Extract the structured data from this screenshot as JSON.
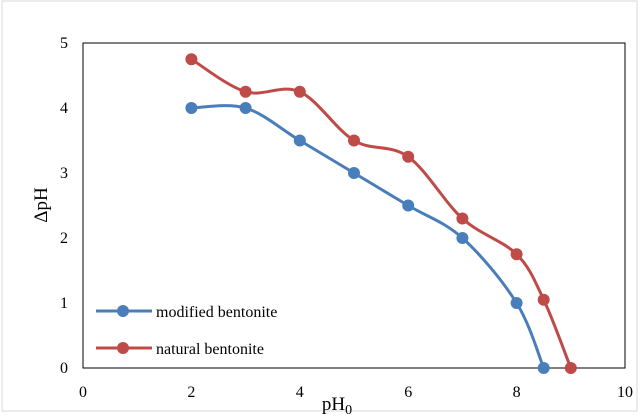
{
  "chart_data": {
    "type": "line",
    "xlabel": "pH",
    "xlabel_subscript": "0",
    "ylabel": "ΔpH",
    "xlim": [
      0,
      10
    ],
    "ylim": [
      0,
      5
    ],
    "x_ticks": [
      "0",
      "2",
      "4",
      "6",
      "8",
      "10"
    ],
    "y_ticks": [
      "0",
      "1",
      "2",
      "3",
      "4",
      "5"
    ],
    "grid": false,
    "legend_position": "bottom-left",
    "series": [
      {
        "name": "modified bentonite",
        "color": "#4a7ebb",
        "x": [
          2,
          3,
          4,
          5,
          6,
          7,
          8,
          8.5
        ],
        "y": [
          4.0,
          4.0,
          3.5,
          3.0,
          2.5,
          2.0,
          1.0,
          0.0
        ]
      },
      {
        "name": "natural bentonite",
        "color": "#be4b48",
        "x": [
          2,
          3,
          4,
          5,
          6,
          7,
          8,
          8.5,
          9
        ],
        "y": [
          4.75,
          4.25,
          4.25,
          3.5,
          3.25,
          2.3,
          1.75,
          1.05,
          0.0
        ]
      }
    ]
  }
}
